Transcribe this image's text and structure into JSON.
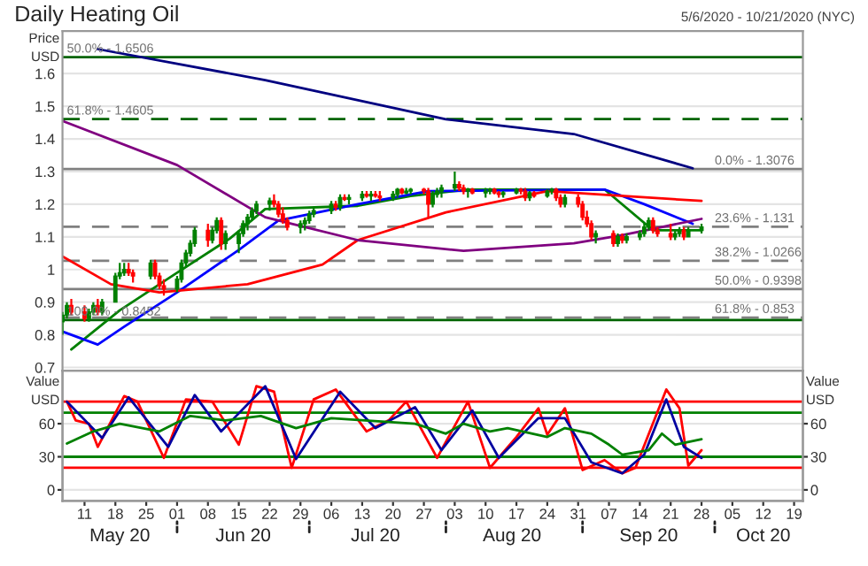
{
  "chart_data": [
    {
      "type": "candlestick",
      "title": "Daily Heating Oil",
      "subtitle": "5/6/2020 - 10/21/2020 (NYC)",
      "ylabel": "Price\nUSD",
      "x": [
        "2020-05-06",
        "2020-05-07",
        "2020-05-08",
        "2020-05-11",
        "2020-05-12",
        "2020-05-13",
        "2020-05-14",
        "2020-05-15",
        "2020-05-18",
        "2020-05-19",
        "2020-05-20",
        "2020-05-21",
        "2020-05-22",
        "2020-05-26",
        "2020-05-27",
        "2020-05-28",
        "2020-05-29",
        "2020-06-01",
        "2020-06-02",
        "2020-06-03",
        "2020-06-04",
        "2020-06-05",
        "2020-06-08",
        "2020-06-09",
        "2020-06-10",
        "2020-06-11",
        "2020-06-12",
        "2020-06-15",
        "2020-06-16",
        "2020-06-17",
        "2020-06-18",
        "2020-06-19",
        "2020-06-22",
        "2020-06-23",
        "2020-06-24",
        "2020-06-25",
        "2020-06-26",
        "2020-06-29",
        "2020-06-30",
        "2020-07-01",
        "2020-07-02",
        "2020-07-06",
        "2020-07-07",
        "2020-07-08",
        "2020-07-09",
        "2020-07-10",
        "2020-07-13",
        "2020-07-14",
        "2020-07-15",
        "2020-07-16",
        "2020-07-17",
        "2020-07-20",
        "2020-07-21",
        "2020-07-22",
        "2020-07-23",
        "2020-07-24",
        "2020-07-27",
        "2020-07-28",
        "2020-07-29",
        "2020-07-30",
        "2020-07-31",
        "2020-08-03",
        "2020-08-04",
        "2020-08-05",
        "2020-08-06",
        "2020-08-07",
        "2020-08-10",
        "2020-08-11",
        "2020-08-12",
        "2020-08-13",
        "2020-08-14",
        "2020-08-17",
        "2020-08-18",
        "2020-08-19",
        "2020-08-20",
        "2020-08-21",
        "2020-08-24",
        "2020-08-25",
        "2020-08-26",
        "2020-08-27",
        "2020-08-28",
        "2020-08-31",
        "2020-09-01",
        "2020-09-02",
        "2020-09-03",
        "2020-09-04",
        "2020-09-08",
        "2020-09-09",
        "2020-09-10",
        "2020-09-11",
        "2020-09-14",
        "2020-09-15",
        "2020-09-16",
        "2020-09-17",
        "2020-09-18",
        "2020-09-21",
        "2020-09-22",
        "2020-09-23",
        "2020-09-24",
        "2020-09-25",
        "2020-09-28"
      ],
      "ohlc": [
        [
          0.84,
          0.87,
          0.8,
          0.86
        ],
        [
          0.86,
          0.9,
          0.85,
          0.89
        ],
        [
          0.89,
          0.91,
          0.86,
          0.87
        ],
        [
          0.87,
          0.89,
          0.84,
          0.85
        ],
        [
          0.85,
          0.88,
          0.84,
          0.87
        ],
        [
          0.87,
          0.9,
          0.86,
          0.89
        ],
        [
          0.89,
          0.91,
          0.86,
          0.87
        ],
        [
          0.87,
          0.91,
          0.86,
          0.9
        ],
        [
          0.9,
          0.99,
          0.9,
          0.98
        ],
        [
          0.98,
          1.02,
          0.97,
          0.99
        ],
        [
          0.99,
          1.02,
          0.98,
          1.0
        ],
        [
          1.0,
          1.02,
          0.98,
          0.99
        ],
        [
          0.99,
          1.0,
          0.96,
          0.98
        ],
        [
          0.98,
          1.03,
          0.97,
          1.02
        ],
        [
          1.02,
          1.03,
          0.97,
          0.98
        ],
        [
          0.98,
          0.99,
          0.94,
          0.95
        ],
        [
          0.95,
          0.97,
          0.92,
          0.94
        ],
        [
          0.94,
          0.98,
          0.93,
          0.97
        ],
        [
          0.97,
          1.03,
          0.96,
          1.02
        ],
        [
          1.02,
          1.06,
          1.01,
          1.05
        ],
        [
          1.05,
          1.09,
          1.04,
          1.08
        ],
        [
          1.08,
          1.13,
          1.07,
          1.12
        ],
        [
          1.12,
          1.14,
          1.07,
          1.09
        ],
        [
          1.09,
          1.13,
          1.08,
          1.12
        ],
        [
          1.12,
          1.16,
          1.11,
          1.15
        ],
        [
          1.15,
          1.16,
          1.06,
          1.08
        ],
        [
          1.08,
          1.12,
          1.06,
          1.11
        ],
        [
          1.08,
          1.12,
          1.05,
          1.11
        ],
        [
          1.11,
          1.15,
          1.1,
          1.14
        ],
        [
          1.14,
          1.17,
          1.12,
          1.16
        ],
        [
          1.16,
          1.19,
          1.15,
          1.18
        ],
        [
          1.18,
          1.21,
          1.17,
          1.2
        ],
        [
          1.2,
          1.22,
          1.18,
          1.21
        ],
        [
          1.21,
          1.23,
          1.19,
          1.2
        ],
        [
          1.2,
          1.21,
          1.16,
          1.17
        ],
        [
          1.17,
          1.19,
          1.14,
          1.15
        ],
        [
          1.15,
          1.16,
          1.12,
          1.13
        ],
        [
          1.13,
          1.15,
          1.11,
          1.14
        ],
        [
          1.14,
          1.16,
          1.12,
          1.15
        ],
        [
          1.15,
          1.18,
          1.14,
          1.17
        ],
        [
          1.17,
          1.19,
          1.16,
          1.18
        ],
        [
          1.18,
          1.21,
          1.17,
          1.2
        ],
        [
          1.2,
          1.21,
          1.18,
          1.19
        ],
        [
          1.19,
          1.23,
          1.18,
          1.22
        ],
        [
          1.22,
          1.23,
          1.21,
          1.215
        ],
        [
          1.215,
          1.23,
          1.2,
          1.22
        ],
        [
          1.22,
          1.24,
          1.21,
          1.23
        ],
        [
          1.23,
          1.24,
          1.22,
          1.225
        ],
        [
          1.225,
          1.24,
          1.21,
          1.23
        ],
        [
          1.23,
          1.24,
          1.22,
          1.225
        ],
        [
          1.225,
          1.24,
          1.21,
          1.22
        ],
        [
          1.22,
          1.24,
          1.21,
          1.23
        ],
        [
          1.23,
          1.25,
          1.22,
          1.245
        ],
        [
          1.245,
          1.25,
          1.23,
          1.235
        ],
        [
          1.235,
          1.25,
          1.23,
          1.24
        ],
        [
          1.24,
          1.25,
          1.23,
          1.245
        ],
        [
          1.245,
          1.25,
          1.23,
          1.24
        ],
        [
          1.24,
          1.25,
          1.16,
          1.2
        ],
        [
          1.2,
          1.24,
          1.19,
          1.23
        ],
        [
          1.23,
          1.25,
          1.22,
          1.24
        ],
        [
          1.24,
          1.26,
          1.22,
          1.25
        ],
        [
          1.25,
          1.3,
          1.24,
          1.26
        ],
        [
          1.26,
          1.27,
          1.24,
          1.25
        ],
        [
          1.25,
          1.26,
          1.23,
          1.24
        ],
        [
          1.24,
          1.25,
          1.22,
          1.245
        ],
        [
          1.245,
          1.25,
          1.23,
          1.235
        ],
        [
          1.235,
          1.25,
          1.22,
          1.24
        ],
        [
          1.24,
          1.25,
          1.23,
          1.245
        ],
        [
          1.245,
          1.25,
          1.23,
          1.235
        ],
        [
          1.235,
          1.24,
          1.22,
          1.23
        ],
        [
          1.23,
          1.24,
          1.22,
          1.235
        ],
        [
          1.235,
          1.25,
          1.23,
          1.245
        ],
        [
          1.245,
          1.25,
          1.23,
          1.24
        ],
        [
          1.24,
          1.25,
          1.21,
          1.22
        ],
        [
          1.22,
          1.24,
          1.21,
          1.235
        ],
        [
          1.235,
          1.24,
          1.22,
          1.225
        ],
        [
          1.225,
          1.245,
          1.22,
          1.24
        ],
        [
          1.24,
          1.25,
          1.23,
          1.245
        ],
        [
          1.245,
          1.25,
          1.21,
          1.22
        ],
        [
          1.22,
          1.23,
          1.19,
          1.2
        ],
        [
          1.2,
          1.23,
          1.19,
          1.22
        ],
        [
          1.22,
          1.23,
          1.19,
          1.2
        ],
        [
          1.2,
          1.21,
          1.15,
          1.16
        ],
        [
          1.16,
          1.18,
          1.13,
          1.14
        ],
        [
          1.14,
          1.15,
          1.09,
          1.1
        ],
        [
          1.1,
          1.12,
          1.08,
          1.11
        ],
        [
          1.11,
          1.12,
          1.07,
          1.08
        ],
        [
          1.08,
          1.11,
          1.07,
          1.1
        ],
        [
          1.1,
          1.11,
          1.08,
          1.09
        ],
        [
          1.09,
          1.11,
          1.08,
          1.1
        ],
        [
          1.1,
          1.12,
          1.09,
          1.11
        ],
        [
          1.11,
          1.14,
          1.1,
          1.13
        ],
        [
          1.13,
          1.16,
          1.12,
          1.15
        ],
        [
          1.15,
          1.16,
          1.11,
          1.12
        ],
        [
          1.12,
          1.13,
          1.1,
          1.11
        ],
        [
          1.11,
          1.14,
          1.09,
          1.1
        ],
        [
          1.1,
          1.12,
          1.09,
          1.11
        ],
        [
          1.11,
          1.13,
          1.1,
          1.12
        ],
        [
          1.12,
          1.13,
          1.09,
          1.1
        ],
        [
          1.1,
          1.13,
          1.1,
          1.12
        ],
        [
          1.12,
          1.14,
          1.11,
          1.13
        ]
      ],
      "series": [
        {
          "type": "line",
          "color": "#008000",
          "x": [
            "2020-05-08",
            "2020-05-19",
            "2020-06-01",
            "2020-06-13",
            "2020-06-21",
            "2020-07-12",
            "2020-07-24",
            "2020-08-06",
            "2020-09-06",
            "2020-09-17",
            "2020-09-28"
          ],
          "values": [
            0.755,
            0.875,
            0.99,
            1.095,
            1.185,
            1.195,
            1.225,
            1.245,
            1.245,
            1.12,
            1.12
          ]
        },
        {
          "type": "line",
          "color": "#0000ff",
          "x": [
            "2020-05-06",
            "2020-05-14",
            "2020-05-20",
            "2020-06-01",
            "2020-06-15",
            "2020-06-24",
            "2020-07-12",
            "2020-07-28",
            "2020-09-06",
            "2020-09-15",
            "2020-09-26"
          ],
          "values": [
            0.81,
            0.77,
            0.825,
            0.93,
            1.06,
            1.15,
            1.2,
            1.24,
            1.245,
            1.2,
            1.14
          ]
        },
        {
          "type": "line",
          "color": "#ff0000",
          "x": [
            "2020-05-06",
            "2020-05-17",
            "2020-05-28",
            "2020-06-17",
            "2020-07-04",
            "2020-07-12",
            "2020-08-01",
            "2020-08-24",
            "2020-09-28"
          ],
          "values": [
            1.04,
            0.955,
            0.93,
            0.955,
            1.015,
            1.09,
            1.175,
            1.24,
            1.21
          ]
        },
        {
          "type": "line",
          "color": "#800080",
          "x": [
            "2020-05-06",
            "2020-06-01",
            "2020-06-21",
            "2020-07-12",
            "2020-08-05",
            "2020-08-30",
            "2020-09-10",
            "2020-09-28"
          ],
          "values": [
            1.455,
            1.32,
            1.16,
            1.09,
            1.057,
            1.08,
            1.105,
            1.155
          ]
        },
        {
          "type": "line",
          "color": "#000080",
          "x": [
            "2020-05-14",
            "2020-06-21",
            "2020-08-01",
            "2020-08-30",
            "2020-09-26"
          ],
          "values": [
            1.675,
            1.58,
            1.46,
            1.415,
            1.31
          ]
        }
      ],
      "xlim": [
        "2020-05-06",
        "2020-10-21"
      ],
      "ylim": [
        0.69,
        1.73
      ],
      "yticks": [
        0.7,
        0.8,
        0.9,
        1,
        1.1,
        1.2,
        1.3,
        1.4,
        1.5,
        1.6
      ],
      "ref_lines": [
        {
          "axis": "y",
          "value": 1.6506,
          "color": "#006400",
          "line_style": "solid"
        },
        {
          "axis": "y",
          "value": 1.4605,
          "color": "#006400",
          "line_style": "dashed"
        },
        {
          "axis": "y",
          "value": 1.3076,
          "color": "#808080",
          "line_style": "solid"
        },
        {
          "axis": "y",
          "value": 1.131,
          "color": "#808080",
          "line_style": "dashed"
        },
        {
          "axis": "y",
          "value": 1.0266,
          "color": "#808080",
          "line_style": "dashed"
        },
        {
          "axis": "y",
          "value": 0.9398,
          "color": "#808080",
          "line_style": "solid"
        },
        {
          "axis": "y",
          "value": 0.853,
          "color": "#808080",
          "line_style": "dashed"
        },
        {
          "axis": "y",
          "value": 0.8452,
          "color": "#006400",
          "line_style": "solid"
        }
      ],
      "annotations": [
        {
          "text": "50.0% - 1.6506",
          "x": "2020-05-06",
          "y": 1.6506
        },
        {
          "text": "61.8% - 1.4605",
          "x": "2020-05-06",
          "y": 1.4605
        },
        {
          "text": "0.0% - 1.3076",
          "x": "2020-09-30",
          "y": 1.3076
        },
        {
          "text": "23.6% - 1.131",
          "x": "2020-09-30",
          "y": 1.131
        },
        {
          "text": "38.2% - 1.0266",
          "x": "2020-09-30",
          "y": 1.0266
        },
        {
          "text": "50.0% - 0.9398",
          "x": "2020-09-30",
          "y": 0.9398
        },
        {
          "text": "61.8% - 0.853",
          "x": "2020-09-30",
          "y": 0.853
        },
        {
          "text": "100.0% - 0.8452",
          "x": "2020-05-06",
          "y": 0.8452
        }
      ],
      "grid": "y",
      "tick_labels": "y"
    },
    {
      "type": "line",
      "ylabel": "Value\nUSD",
      "y2label": "Value\nUSD",
      "series": [
        {
          "color": "#ff0000",
          "x": [
            "2020-05-07",
            "2020-05-09",
            "2020-05-12",
            "2020-05-14",
            "2020-05-20",
            "2020-05-23",
            "2020-05-29",
            "2020-06-03",
            "2020-06-09",
            "2020-06-15",
            "2020-06-19",
            "2020-06-23",
            "2020-06-27",
            "2020-07-02",
            "2020-07-07",
            "2020-07-14",
            "2020-07-19",
            "2020-07-23",
            "2020-07-30",
            "2020-08-06",
            "2020-08-11",
            "2020-08-17",
            "2020-08-22",
            "2020-08-24",
            "2020-08-28",
            "2020-09-01",
            "2020-09-06",
            "2020-09-10",
            "2020-09-13",
            "2020-09-20",
            "2020-09-23",
            "2020-09-25",
            "2020-09-28"
          ],
          "values": [
            80,
            63,
            60,
            39,
            85,
            80,
            29,
            82,
            80,
            41,
            94,
            89,
            20,
            82,
            91,
            53,
            63,
            80,
            29,
            80,
            20,
            48,
            74,
            50,
            74,
            18,
            27,
            15,
            20,
            91,
            74,
            22,
            36
          ]
        },
        {
          "color": "#0000a0",
          "x": [
            "2020-05-07",
            "2020-05-15",
            "2020-05-21",
            "2020-05-30",
            "2020-06-05",
            "2020-06-11",
            "2020-06-21",
            "2020-06-28",
            "2020-07-08",
            "2020-07-16",
            "2020-07-25",
            "2020-07-31",
            "2020-08-07",
            "2020-08-13",
            "2020-08-22",
            "2020-08-28",
            "2020-09-03",
            "2020-09-10",
            "2020-09-15",
            "2020-09-20",
            "2020-09-24",
            "2020-09-28"
          ],
          "values": [
            80,
            47,
            84,
            39,
            86,
            53,
            94,
            28,
            89,
            56,
            75,
            36,
            72,
            29,
            65,
            65,
            25,
            15,
            32,
            82,
            39,
            29
          ]
        },
        {
          "color": "#008000",
          "x": [
            "2020-05-07",
            "2020-05-13",
            "2020-05-19",
            "2020-05-28",
            "2020-06-04",
            "2020-06-12",
            "2020-06-20",
            "2020-06-28",
            "2020-07-06",
            "2020-07-25",
            "2020-08-01",
            "2020-08-05",
            "2020-08-11",
            "2020-08-15",
            "2020-08-24",
            "2020-08-28",
            "2020-09-03",
            "2020-09-07",
            "2020-09-10",
            "2020-09-16",
            "2020-09-19",
            "2020-09-22",
            "2020-09-28"
          ],
          "values": [
            42,
            53,
            60,
            53,
            67,
            63,
            67,
            56,
            65,
            60,
            51,
            60,
            53,
            56,
            48,
            56,
            51,
            41,
            32,
            36,
            51,
            41,
            46
          ]
        }
      ],
      "xlim": [
        "2020-05-06",
        "2020-10-21"
      ],
      "xticks": [
        {
          "value": "2020-05-11",
          "label": "11"
        },
        {
          "value": "2020-05-18",
          "label": "18"
        },
        {
          "value": "2020-05-25",
          "label": "25"
        },
        {
          "value": "2020-06-01",
          "label": "01"
        },
        {
          "value": "2020-06-08",
          "label": "08"
        },
        {
          "value": "2020-06-15",
          "label": "15"
        },
        {
          "value": "2020-06-22",
          "label": "22"
        },
        {
          "value": "2020-06-29",
          "label": "29"
        },
        {
          "value": "2020-07-06",
          "label": "06"
        },
        {
          "value": "2020-07-13",
          "label": "13"
        },
        {
          "value": "2020-07-20",
          "label": "20"
        },
        {
          "value": "2020-07-27",
          "label": "27"
        },
        {
          "value": "2020-08-03",
          "label": "03"
        },
        {
          "value": "2020-08-10",
          "label": "10"
        },
        {
          "value": "2020-08-17",
          "label": "17"
        },
        {
          "value": "2020-08-24",
          "label": "24"
        },
        {
          "value": "2020-08-31",
          "label": "31"
        },
        {
          "value": "2020-09-07",
          "label": "07"
        },
        {
          "value": "2020-09-14",
          "label": "14"
        },
        {
          "value": "2020-09-21",
          "label": "21"
        },
        {
          "value": "2020-09-28",
          "label": "28"
        },
        {
          "value": "2020-10-05",
          "label": "05"
        },
        {
          "value": "2020-10-12",
          "label": "12"
        },
        {
          "value": "2020-10-19",
          "label": "19"
        }
      ],
      "x2lim": [
        "2020-05-06",
        "2020-10-21"
      ],
      "x2ticks": [
        {
          "value": "2020-05-19",
          "label": "May 20"
        },
        {
          "value": "2020-06-16",
          "label": "Jun 20"
        },
        {
          "value": "2020-07-16",
          "label": "Jul 20"
        },
        {
          "value": "2020-08-16",
          "label": "Aug 20"
        },
        {
          "value": "2020-09-16",
          "label": "Sep 20"
        },
        {
          "value": "2020-10-12",
          "label": "Oct 20"
        }
      ],
      "ylim": [
        -10,
        108
      ],
      "yticks": [
        0,
        30,
        60
      ],
      "y2lim": [
        -10,
        108
      ],
      "y2ticks": [
        0,
        30,
        60
      ],
      "ref_lines": [
        {
          "axis": "y",
          "value": 80,
          "color": "#ff0000"
        },
        {
          "axis": "y",
          "value": 70,
          "color": "#008000"
        },
        {
          "axis": "y",
          "value": 30,
          "color": "#008000"
        },
        {
          "axis": "y",
          "value": 20,
          "color": "#ff0000"
        }
      ],
      "grid": "y"
    }
  ]
}
